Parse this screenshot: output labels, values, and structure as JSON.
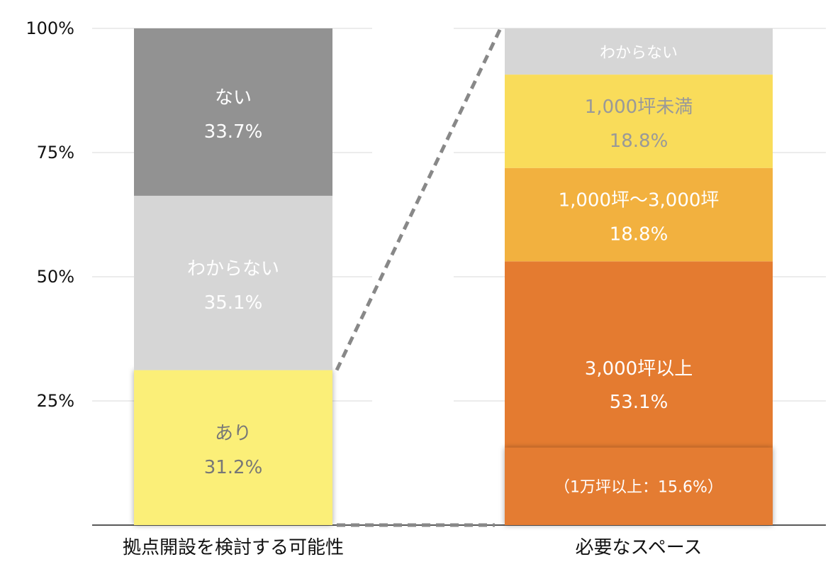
{
  "chart_data": {
    "type": "bar",
    "stacked": true,
    "ylim": [
      0,
      100
    ],
    "yticks": [
      {
        "value": 25,
        "label": "25%"
      },
      {
        "value": 50,
        "label": "50%"
      },
      {
        "value": 75,
        "label": "75%"
      },
      {
        "value": 100,
        "label": "100%"
      }
    ],
    "grid": true,
    "bars": [
      {
        "category": "拠点開設を検討する可能性",
        "segments": [
          {
            "name": "あり",
            "value": 31.2,
            "value_label": "31.2%",
            "color": "#fbef78",
            "text_color": "#777777",
            "emphasized": true
          },
          {
            "name": "わからない",
            "value": 35.1,
            "value_label": "35.1%",
            "color": "#d6d6d6",
            "text_color": "#ffffff"
          },
          {
            "name": "ない",
            "value": 33.7,
            "value_label": "33.7%",
            "color": "#929292",
            "text_color": "#ffffff"
          }
        ]
      },
      {
        "category": "必要なスペース",
        "segments": [
          {
            "name": "3,000坪以上",
            "value": 53.1,
            "value_label": "53.1%",
            "color": "#e47b30",
            "text_color": "#ffffff"
          },
          {
            "name": "1,000坪〜3,000坪",
            "value": 18.8,
            "value_label": "18.8%",
            "color": "#f2b13f",
            "text_color": "#ffffff"
          },
          {
            "name": "1,000坪未満",
            "value": 18.8,
            "value_label": "18.8%",
            "color": "#f9dc5a",
            "text_color": "#999999"
          },
          {
            "name": "わからない",
            "value": 9.3,
            "value_label": "",
            "color": "#d6d6d6",
            "text_color": "#ffffff"
          }
        ],
        "annotation": {
          "text": "（1万坪以上：15.6%）",
          "value": 15.6,
          "color": "#e47b30",
          "text_color": "#ffffff"
        }
      }
    ],
    "connector_color": "#888888"
  }
}
